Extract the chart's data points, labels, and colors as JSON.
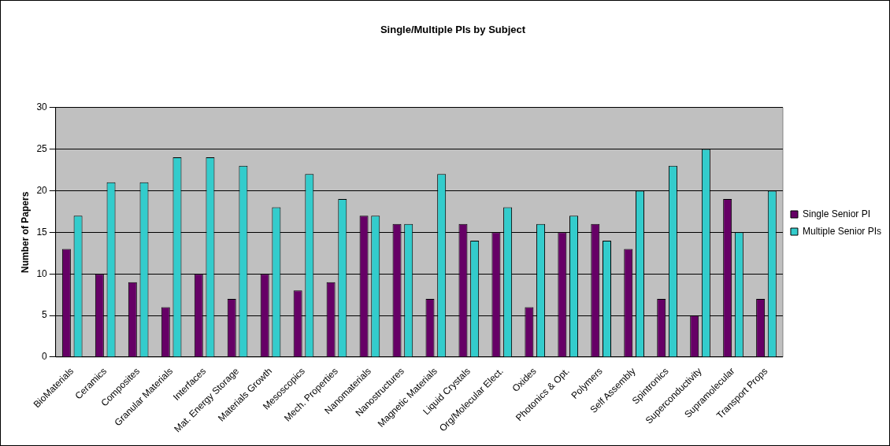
{
  "chart_data": {
    "type": "bar",
    "title": "Single/Multiple PIs by Subject",
    "ylabel": "Number of Papers",
    "categories": [
      "BioMaterials",
      "Ceramics",
      "Composites",
      "Granular Materials",
      "Interfaces",
      "Mat. Energy Storage",
      "Materials Growth",
      "Mesoscopics",
      "Mech. Properties",
      "Nanomaterials",
      "Nanostructures",
      "Magnetic Materials",
      "Liquid Crystals",
      "Org/Molecular Elect.",
      "Oxides",
      "Photonics & Opt.",
      "Polymers",
      "Self Assembly",
      "Spintronics",
      "Superconductivity",
      "Supramolecular",
      "Transport Props"
    ],
    "series": [
      {
        "name": "Single Senior PI",
        "color": "#660066",
        "values": [
          13,
          10,
          9,
          6,
          10,
          7,
          10,
          8,
          9,
          17,
          16,
          7,
          16,
          15,
          6,
          15,
          16,
          13,
          7,
          5,
          19,
          7
        ]
      },
      {
        "name": "Multiple Senior PIs",
        "color": "#33cccc",
        "values": [
          17,
          21,
          21,
          24,
          24,
          23,
          18,
          22,
          19,
          17,
          16,
          22,
          14,
          18,
          16,
          17,
          14,
          20,
          23,
          25,
          15,
          20
        ]
      }
    ],
    "ylim": [
      0,
      30
    ],
    "yticks": [
      0,
      5,
      10,
      15,
      20,
      25,
      30
    ],
    "grid": "y",
    "legend": "right"
  }
}
